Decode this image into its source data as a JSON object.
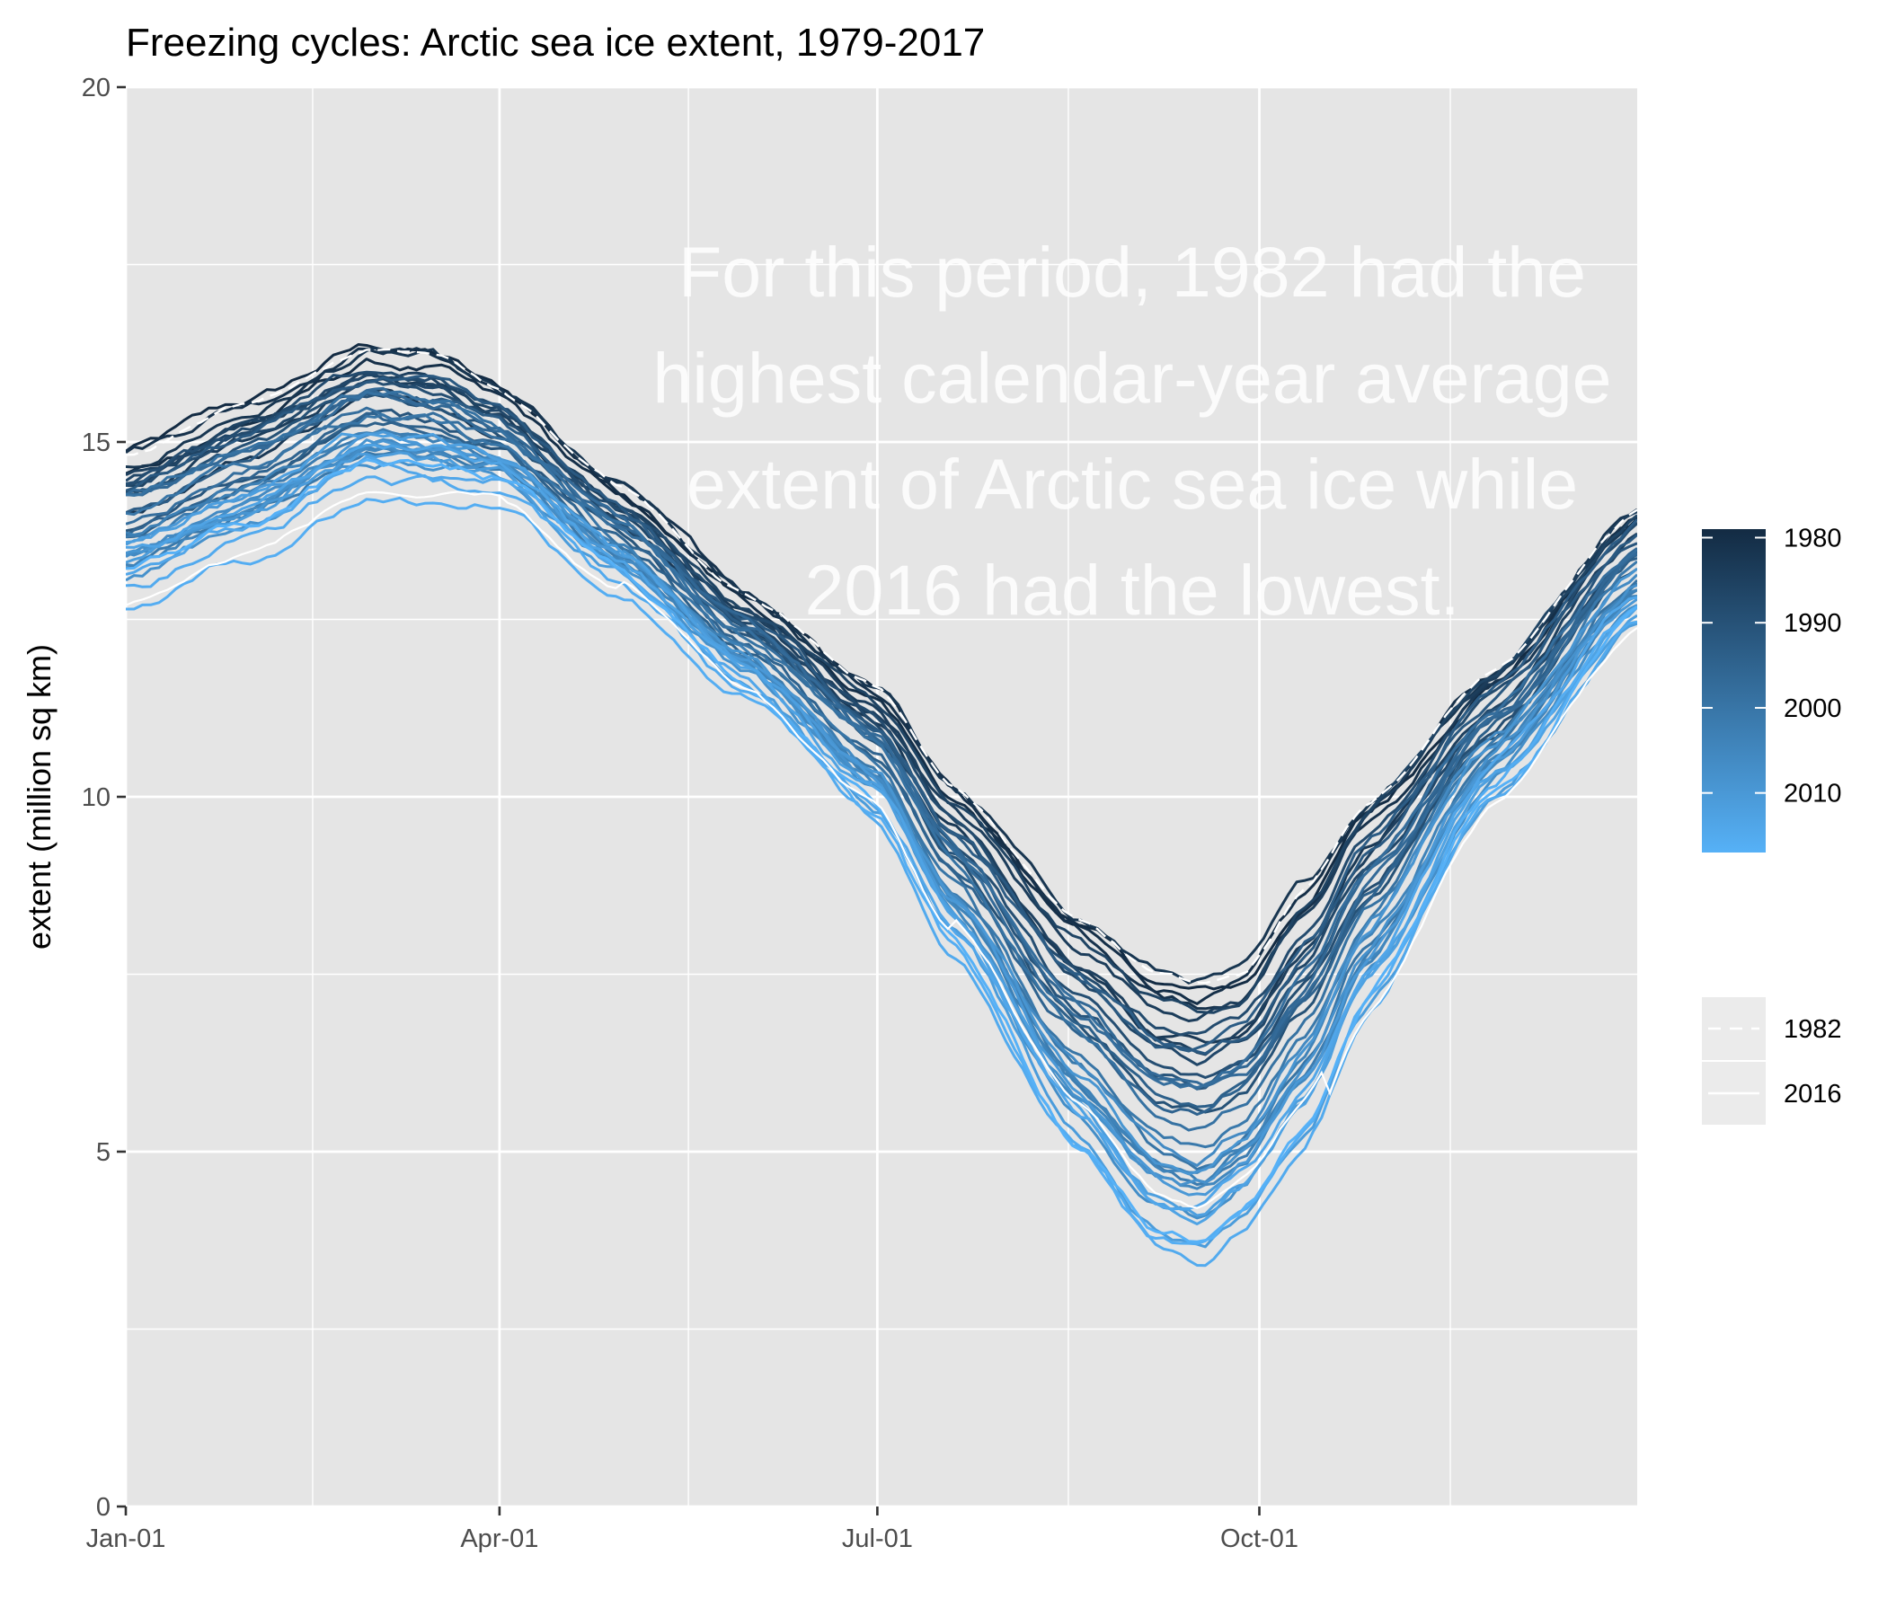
{
  "chart_data": {
    "type": "line",
    "title": "Freezing cycles: Arctic sea ice extent, 1979-2017",
    "xlabel": "",
    "ylabel": "extent (million sq km)",
    "ylim": [
      0,
      20
    ],
    "yticks": [
      "0",
      "5",
      "10",
      "15",
      "20"
    ],
    "x_tick_labels": [
      "Jan-01",
      "Apr-01",
      "Jul-01",
      "Oct-01"
    ],
    "x_tick_days": [
      1,
      91,
      182,
      274
    ],
    "x_range_days": [
      1,
      365
    ],
    "grid": true,
    "years": [
      1979,
      2017
    ],
    "envelope_by_day": {
      "days": [
        1,
        30,
        60,
        75,
        90,
        120,
        150,
        182,
        200,
        230,
        250,
        260,
        270,
        285,
        300,
        330,
        365
      ],
      "high": [
        14.9,
        15.6,
        16.4,
        16.3,
        15.8,
        14.4,
        12.9,
        11.6,
        10.2,
        8.4,
        7.6,
        7.5,
        7.6,
        8.8,
        10.0,
        11.8,
        14.1
      ],
      "low": [
        12.6,
        13.3,
        14.2,
        14.1,
        14.1,
        12.8,
        11.3,
        9.6,
        7.8,
        5.0,
        3.6,
        3.4,
        3.9,
        5.0,
        6.8,
        9.8,
        12.3
      ]
    },
    "annotation": [
      "For this period, 1982 had the",
      "highest calendar-year average",
      "extent of Arctic sea ice while",
      "2016 had the lowest."
    ],
    "color_legend": {
      "labels": [
        "1980",
        "1990",
        "2000",
        "2010"
      ],
      "low_year_color": "#132b43",
      "high_year_color": "#56b1f7"
    },
    "highlight_legend": [
      {
        "label": "1982",
        "style": "dashed",
        "color": "#ffffff"
      },
      {
        "label": "2016",
        "style": "solid",
        "color": "#ffffff"
      }
    ],
    "panel_background": "#e5e5e5",
    "grid_color": "#ffffff"
  }
}
